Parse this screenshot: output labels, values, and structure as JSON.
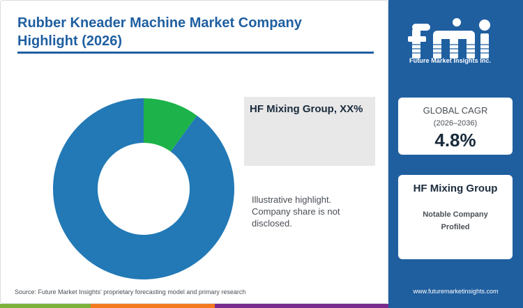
{
  "header": {
    "title": "Rubber Kneader Machine Market Company Highlight (2026)"
  },
  "chart_data": {
    "type": "pie",
    "title": "Rubber Kneader Machine Market Company Highlight (2026)",
    "variant": "donut",
    "slices": [
      {
        "name": "HF Mixing Group",
        "value": 10,
        "color": "#1db34a"
      },
      {
        "name": "",
        "value": 90,
        "color": "#2279b5"
      }
    ]
  },
  "callout": {
    "text": "HF Mixing Group, XX%"
  },
  "note": {
    "text": "Illustrative highlight. Company share is not disclosed."
  },
  "footer": {
    "source": "Source: Future Market Insights' proprietary forecasting model and primary research"
  },
  "sidebar": {
    "logo_letters": "fmi",
    "logo_text": "Future Market Insights Inc.",
    "cagr": {
      "label": "GLOBAL CAGR",
      "period": "(2026–2036)",
      "value": "4.8%"
    },
    "company": {
      "name": "HF Mixing Group",
      "subtitle": "Notable Company Profiled"
    },
    "website": "www.futuremarketinsights.com"
  },
  "colors": {
    "brand_blue": "#1f5fa0",
    "accent_green": "#7db23a",
    "accent_orange": "#f47a20",
    "accent_purple": "#7a2c8e"
  }
}
